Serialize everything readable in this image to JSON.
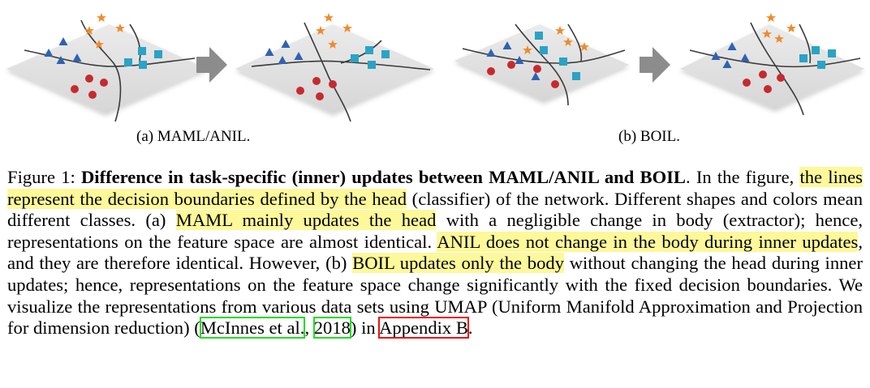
{
  "figure": {
    "panels": [
      {
        "id": "a",
        "caption": "(a) MAML/ANIL."
      },
      {
        "id": "b",
        "caption": "(b) BOIL."
      }
    ],
    "colors": {
      "plane": "#dedede",
      "plane_edge": "#cfcfcf",
      "triangle": "#2f62b3",
      "circle": "#c72a2e",
      "square": "#2aa3c6",
      "star": "#ef8a2a",
      "boundary": "#3a3a3a",
      "arrow": "#8c8c8c"
    }
  },
  "caption": {
    "label": "Figure 1: ",
    "title": "Difference in task-specific (inner) updates between MAML/ANIL and BOIL",
    "s1": ". In the figure, ",
    "h1": "the lines represent the decision boundaries defined by the head",
    "s2": " (classifier) of the network. Different shapes and colors mean different classes.  (a) ",
    "h2": "MAML mainly updates the head",
    "s3": " with a negligible change in body (extractor); hence, representations on the feature space are almost identical. ",
    "h3": "ANIL does not change in the body during inner updates",
    "s4": ", and they are therefore identical. However, (b) ",
    "h4": "BOIL updates only the body",
    "s5": " without changing the head during inner updates; hence, representations on the feature space change significantly with the fixed decision boundaries.  We visualize the representations from various data sets using UMAP (Uniform Manifold Approximation and Projection for dimension reduction) (",
    "cite_author": "McInnes et al.",
    "cite_sep": ", ",
    "cite_year": "2018",
    "s6": ") in ",
    "ref": "Appendix B",
    "s7": "."
  }
}
